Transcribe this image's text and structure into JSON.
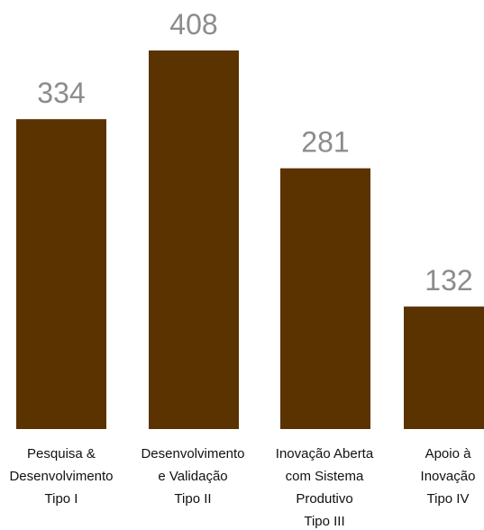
{
  "chart_data": {
    "type": "bar",
    "categories": [
      [
        "Pesquisa &",
        "Desenvolvimento",
        "Tipo I"
      ],
      [
        "Desenvolvimento",
        "e Validação",
        "Tipo II"
      ],
      [
        "Inovação Aberta",
        "com Sistema",
        "Produtivo",
        "Tipo III"
      ],
      [
        "Apoio à",
        "Inovação",
        "Tipo IV"
      ]
    ],
    "values": [
      334,
      408,
      281,
      132
    ],
    "value_labels": [
      "334",
      "408",
      "281",
      "132"
    ],
    "title": "",
    "xlabel": "",
    "ylabel": "",
    "ylim": [
      0,
      408
    ],
    "grid": false,
    "bar_color": "#5a3300",
    "value_label_color": "#8c8c8c"
  }
}
